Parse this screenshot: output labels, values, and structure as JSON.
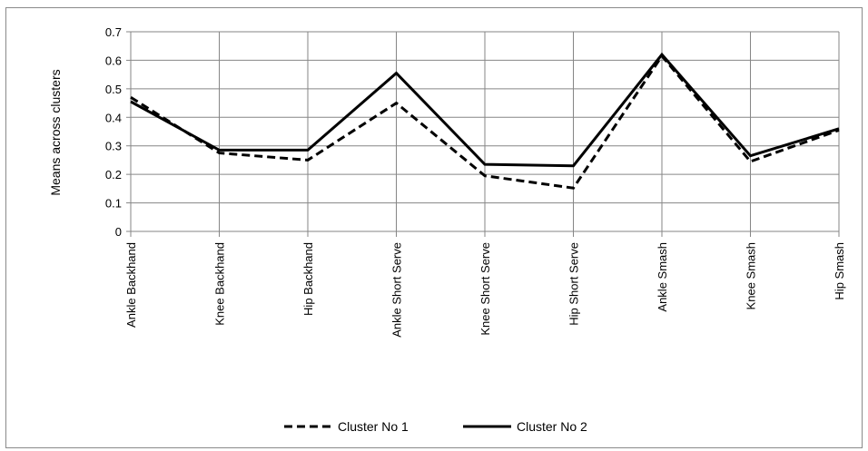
{
  "chart_data": {
    "type": "line",
    "title": "",
    "xlabel": "",
    "ylabel": "Means  across clusters",
    "categories": [
      "Ankle Backhand",
      "Knee Backhand",
      "Hip Backhand",
      "Ankle Short Serve",
      "Knee Short Serve",
      "Hip Short Serve",
      "Ankle Smash",
      "Knee Smash",
      "Hip Smash"
    ],
    "series": [
      {
        "name": "Cluster No 1",
        "style": "dashed",
        "color": "#000000",
        "values": [
          0.47,
          0.275,
          0.25,
          0.45,
          0.195,
          0.152,
          0.615,
          0.245,
          0.355
        ]
      },
      {
        "name": "Cluster No 2",
        "style": "solid",
        "color": "#000000",
        "values": [
          0.455,
          0.285,
          0.285,
          0.555,
          0.235,
          0.23,
          0.62,
          0.265,
          0.36
        ]
      }
    ],
    "ylim": [
      0,
      0.7
    ],
    "yticks": [
      "0",
      "0.1",
      "0.2",
      "0.3",
      "0.4",
      "0.5",
      "0.6",
      "0.7"
    ],
    "grid": true,
    "legend_position": "bottom"
  }
}
